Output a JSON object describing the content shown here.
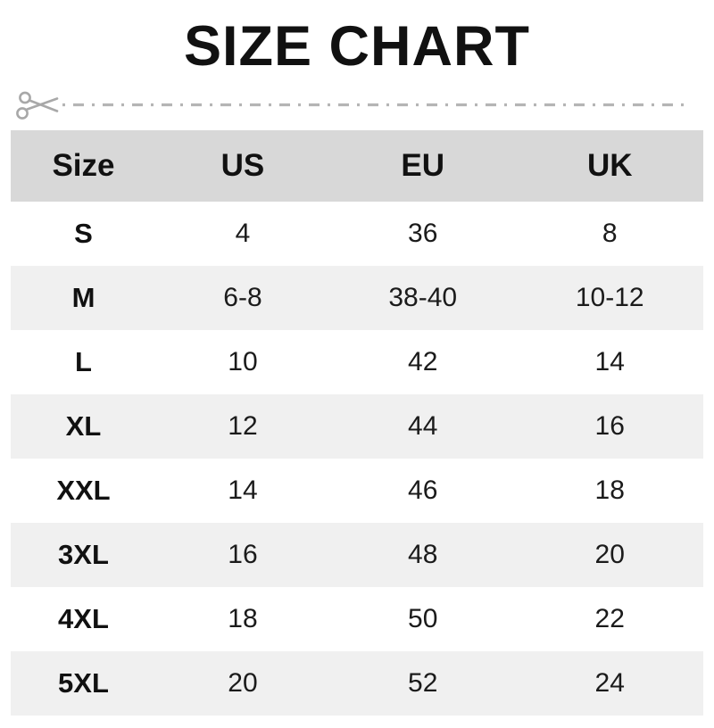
{
  "title": "SIZE CHART",
  "cut_line": {
    "icon": "scissors-icon",
    "line_style": "dash-dot",
    "color": "#adadad"
  },
  "colors": {
    "title_text": "#111111",
    "header_bg": "#d8d8d8",
    "header_text": "#111111",
    "alt_row_bg": "#f0f0f0",
    "body_text": "#1b1b1b",
    "cut_line": "#b5b5b5"
  },
  "chart_data": {
    "type": "table",
    "title": "SIZE CHART",
    "columns": [
      "Size",
      "US",
      "EU",
      "UK"
    ],
    "rows": [
      [
        "S",
        "4",
        "36",
        "8"
      ],
      [
        "M",
        "6-8",
        "38-40",
        "10-12"
      ],
      [
        "L",
        "10",
        "42",
        "14"
      ],
      [
        "XL",
        "12",
        "44",
        "16"
      ],
      [
        "XXL",
        "14",
        "46",
        "18"
      ],
      [
        "3XL",
        "16",
        "48",
        "20"
      ],
      [
        "4XL",
        "18",
        "50",
        "22"
      ],
      [
        "5XL",
        "20",
        "52",
        "24"
      ]
    ],
    "layout_hints": {
      "row_striping": "white / light-gray alternating starting white",
      "column_width_pct": [
        21,
        25,
        27,
        27
      ]
    }
  }
}
